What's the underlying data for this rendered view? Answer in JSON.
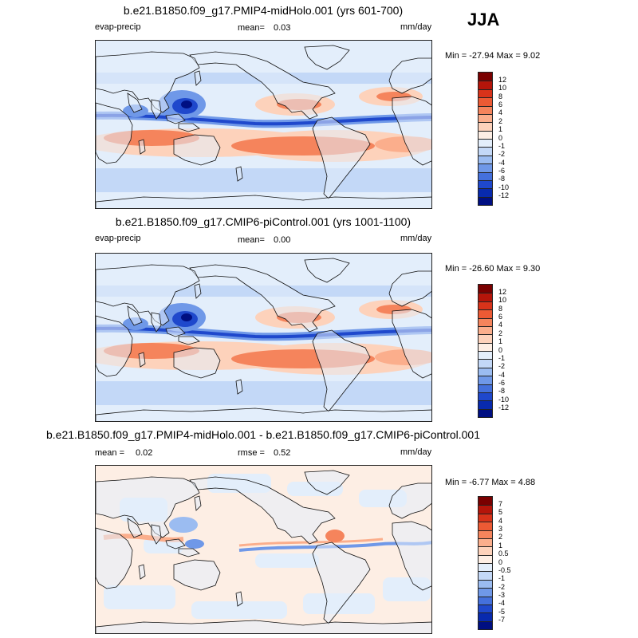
{
  "season": "JJA",
  "panels": [
    {
      "title": "b.e21.B1850.f09_g17.PMIP4-midHolo.001 (yrs 601-700)",
      "left_label": "evap-precip",
      "mean_label": "mean=",
      "mean_value": "0.03",
      "rmse_label": "",
      "rmse_value": "",
      "units": "mm/day",
      "minmax": "Min = -27.94 Max =   9.02",
      "colorbar_labels": [
        "12",
        "10",
        "8",
        "6",
        "4",
        "2",
        "1",
        "0",
        "-1",
        "-2",
        "-4",
        "-6",
        "-8",
        "-10",
        "-12"
      ]
    },
    {
      "title": "b.e21.B1850.f09_g17.CMIP6-piControl.001 (yrs 1001-1100)",
      "left_label": "evap-precip",
      "mean_label": "mean=",
      "mean_value": "0.00",
      "rmse_label": "",
      "rmse_value": "",
      "units": "mm/day",
      "minmax": "Min = -26.60 Max =   9.30",
      "colorbar_labels": [
        "12",
        "10",
        "8",
        "6",
        "4",
        "2",
        "1",
        "0",
        "-1",
        "-2",
        "-4",
        "-6",
        "-8",
        "-10",
        "-12"
      ]
    },
    {
      "title": "b.e21.B1850.f09_g17.PMIP4-midHolo.001 - b.e21.B1850.f09_g17.CMIP6-piControl.001",
      "left_label": "mean =",
      "mean_label": "",
      "mean_value": "0.02",
      "rmse_label": "rmse =",
      "rmse_value": "0.52",
      "units": "mm/day",
      "minmax": "Min = -6.77 Max =   4.88",
      "colorbar_labels": [
        "7",
        "5",
        "4",
        "3",
        "2",
        "1",
        "0.5",
        "0",
        "-0.5",
        "-1",
        "-2",
        "-3",
        "-4",
        "-5",
        "-7"
      ]
    }
  ],
  "colors": {
    "palette": [
      "#7a0000",
      "#b5150a",
      "#d8331a",
      "#ec5a34",
      "#f5845c",
      "#fbae8c",
      "#fdd2bb",
      "#fdeee4",
      "#e3eefb",
      "#c3d8f7",
      "#9bbcf1",
      "#6f98e8",
      "#4470dc",
      "#1f48cc",
      "#082aae",
      "#000f82"
    ],
    "coastline": "#111111"
  }
}
